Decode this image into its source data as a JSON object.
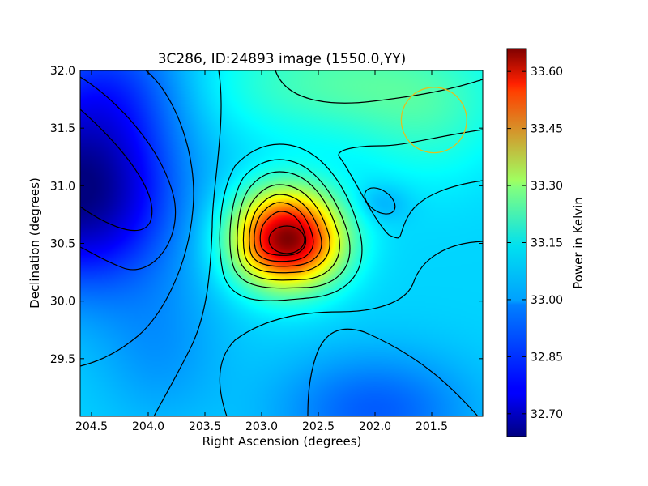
{
  "chart_data": {
    "type": "heatmap",
    "title": "3C286, ID:24893 image (1550.0,YY)",
    "xlabel": "Right Ascension (degrees)",
    "ylabel": "Declination (degrees)",
    "xlim": [
      204.6,
      201.05
    ],
    "ylim": [
      29.0,
      32.0
    ],
    "x_ticks": [
      204.5,
      204.0,
      203.5,
      203.0,
      202.5,
      202.0,
      201.5
    ],
    "x_tick_labels": [
      "204.5",
      "204.0",
      "203.5",
      "203.0",
      "202.5",
      "202.0",
      "201.5"
    ],
    "y_ticks": [
      29.5,
      30.0,
      30.5,
      31.0,
      31.5,
      32.0
    ],
    "y_tick_labels": [
      "29.5",
      "30.0",
      "30.5",
      "31.0",
      "31.5",
      "32.0"
    ],
    "colorbar": {
      "label": "Power in Kelvin",
      "range": [
        32.64,
        33.66
      ],
      "ticks": [
        32.7,
        32.85,
        33.0,
        33.15,
        33.3,
        33.45,
        33.6
      ],
      "tick_labels": [
        "32.70",
        "32.85",
        "33.00",
        "33.15",
        "33.30",
        "33.45",
        "33.60"
      ],
      "colormap": "jet"
    },
    "features": [
      {
        "kind": "peak",
        "ra": 202.77,
        "dec": 30.54,
        "value": 33.66
      },
      {
        "kind": "minimum",
        "ra": 204.55,
        "dec": 30.95,
        "value": 32.64
      },
      {
        "kind": "minimum",
        "ra": 202.0,
        "dec": 29.1,
        "value": 32.88
      },
      {
        "kind": "local-minimum",
        "ra": 201.95,
        "dec": 30.85,
        "value": 32.92
      }
    ],
    "beam_circle": {
      "ra": 201.48,
      "dec": 31.57,
      "radius_deg": 0.37,
      "color": "#e0c020"
    },
    "contour_color": "#000000",
    "grid": false
  }
}
